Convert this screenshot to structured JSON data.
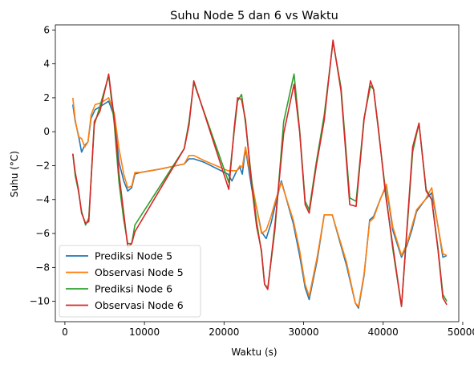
{
  "chart_data": {
    "type": "line",
    "title": "Suhu Node 5 dan 6 vs Waktu",
    "xlabel": "Waktu (s)",
    "ylabel": "Suhu (°C)",
    "xlim": [
      -1200,
      49500
    ],
    "ylim": [
      -11.2,
      6.3
    ],
    "x_ticks": [
      0,
      10000,
      20000,
      30000,
      40000,
      50000
    ],
    "x_tick_labels": [
      "0",
      "10000",
      "20000",
      "30000",
      "40000",
      "50000"
    ],
    "y_ticks": [
      -10,
      -8,
      -6,
      -4,
      -2,
      0,
      2,
      4,
      6
    ],
    "y_tick_labels": [
      "−10",
      "−8",
      "−6",
      "−4",
      "−2",
      "0",
      "2",
      "4",
      "6"
    ],
    "grid": false,
    "legend_position": "lower-left",
    "series": [
      {
        "name": "Prediksi Node 5",
        "color": "#1f77b4",
        "points": [
          [
            1000,
            1.6
          ],
          [
            1300,
            0.6
          ],
          [
            1700,
            -0.2
          ],
          [
            2100,
            -1.2
          ],
          [
            2500,
            -0.8
          ],
          [
            2900,
            -0.6
          ],
          [
            3300,
            0.8
          ],
          [
            3800,
            1.3
          ],
          [
            4500,
            1.5
          ],
          [
            5500,
            1.8
          ],
          [
            6200,
            0.9
          ],
          [
            6800,
            -1.8
          ],
          [
            7400,
            -2.9
          ],
          [
            7900,
            -3.5
          ],
          [
            8400,
            -3.3
          ],
          [
            8800,
            -2.5
          ],
          [
            9500,
            -2.4
          ],
          [
            12000,
            -2.2
          ],
          [
            15000,
            -1.9
          ],
          [
            15600,
            -1.6
          ],
          [
            16200,
            -1.6
          ],
          [
            17500,
            -1.8
          ],
          [
            20500,
            -2.5
          ],
          [
            21000,
            -2.9
          ],
          [
            21600,
            -2.3
          ],
          [
            22000,
            -2.1
          ],
          [
            22300,
            -2.5
          ],
          [
            22700,
            -1.0
          ],
          [
            23500,
            -3.4
          ],
          [
            24100,
            -4.5
          ],
          [
            24700,
            -5.9
          ],
          [
            25300,
            -6.3
          ],
          [
            25900,
            -5.4
          ],
          [
            26500,
            -4.2
          ],
          [
            27200,
            -2.9
          ],
          [
            28700,
            -5.4
          ],
          [
            29500,
            -7.3
          ],
          [
            30200,
            -9.2
          ],
          [
            30700,
            -9.9
          ],
          [
            31700,
            -7.6
          ],
          [
            32600,
            -4.9
          ],
          [
            33600,
            -4.9
          ],
          [
            35400,
            -7.9
          ],
          [
            36500,
            -10.1
          ],
          [
            36900,
            -10.4
          ],
          [
            37600,
            -8.5
          ],
          [
            38300,
            -5.2
          ],
          [
            38800,
            -5.0
          ],
          [
            39700,
            -3.9
          ],
          [
            40400,
            -3.2
          ],
          [
            41200,
            -5.8
          ],
          [
            42300,
            -7.4
          ],
          [
            43000,
            -6.7
          ],
          [
            43600,
            -5.8
          ],
          [
            44200,
            -4.7
          ],
          [
            45300,
            -4.0
          ],
          [
            46100,
            -3.6
          ],
          [
            46900,
            -5.6
          ],
          [
            47500,
            -7.4
          ],
          [
            48000,
            -7.3
          ]
        ]
      },
      {
        "name": "Observasi Node 5",
        "color": "#ff7f0e",
        "points": [
          [
            1000,
            2.0
          ],
          [
            1300,
            0.7
          ],
          [
            1700,
            -0.3
          ],
          [
            2100,
            -0.4
          ],
          [
            2500,
            -0.9
          ],
          [
            2900,
            -0.6
          ],
          [
            3300,
            1.0
          ],
          [
            3800,
            1.6
          ],
          [
            4500,
            1.7
          ],
          [
            5500,
            2.0
          ],
          [
            6200,
            1.1
          ],
          [
            6800,
            -1.0
          ],
          [
            7400,
            -2.5
          ],
          [
            7900,
            -3.3
          ],
          [
            8400,
            -3.2
          ],
          [
            8800,
            -2.4
          ],
          [
            9500,
            -2.4
          ],
          [
            12000,
            -2.2
          ],
          [
            15000,
            -1.9
          ],
          [
            15600,
            -1.4
          ],
          [
            16200,
            -1.4
          ],
          [
            17500,
            -1.7
          ],
          [
            20500,
            -2.3
          ],
          [
            21000,
            -2.3
          ],
          [
            21600,
            -2.3
          ],
          [
            22000,
            -2.0
          ],
          [
            22300,
            -2.1
          ],
          [
            22700,
            -0.9
          ],
          [
            23500,
            -3.0
          ],
          [
            24100,
            -4.5
          ],
          [
            24700,
            -6.0
          ],
          [
            25300,
            -5.8
          ],
          [
            25900,
            -5.0
          ],
          [
            26500,
            -4.0
          ],
          [
            27200,
            -3.0
          ],
          [
            28700,
            -5.2
          ],
          [
            29500,
            -7.0
          ],
          [
            30200,
            -9.0
          ],
          [
            30700,
            -9.7
          ],
          [
            31700,
            -7.4
          ],
          [
            32600,
            -4.9
          ],
          [
            33600,
            -4.9
          ],
          [
            35400,
            -7.7
          ],
          [
            36500,
            -10.1
          ],
          [
            36900,
            -10.3
          ],
          [
            37600,
            -8.4
          ],
          [
            38300,
            -5.3
          ],
          [
            38800,
            -5.1
          ],
          [
            39700,
            -3.9
          ],
          [
            40400,
            -3.1
          ],
          [
            41200,
            -5.6
          ],
          [
            42300,
            -7.3
          ],
          [
            43000,
            -6.6
          ],
          [
            43600,
            -5.6
          ],
          [
            44200,
            -4.6
          ],
          [
            45300,
            -4.0
          ],
          [
            46100,
            -3.3
          ],
          [
            46900,
            -5.6
          ],
          [
            47500,
            -7.2
          ],
          [
            48000,
            -7.3
          ]
        ]
      },
      {
        "name": "Prediksi Node 6",
        "color": "#2ca02c",
        "points": [
          [
            1000,
            -1.3
          ],
          [
            1300,
            -2.6
          ],
          [
            1700,
            -3.5
          ],
          [
            2100,
            -4.7
          ],
          [
            2600,
            -5.5
          ],
          [
            3000,
            -5.1
          ],
          [
            3700,
            0.4
          ],
          [
            4400,
            1.5
          ],
          [
            5500,
            3.3
          ],
          [
            6200,
            0.5
          ],
          [
            6800,
            -3.0
          ],
          [
            7400,
            -5.2
          ],
          [
            7900,
            -6.6
          ],
          [
            8400,
            -6.6
          ],
          [
            8800,
            -5.5
          ],
          [
            15000,
            -1.0
          ],
          [
            15600,
            0.6
          ],
          [
            16200,
            2.9
          ],
          [
            20600,
            -3.0
          ],
          [
            21300,
            0.1
          ],
          [
            21700,
            1.8
          ],
          [
            22200,
            2.2
          ],
          [
            22700,
            0.5
          ],
          [
            23500,
            -3.0
          ],
          [
            24100,
            -5.3
          ],
          [
            24700,
            -7.1
          ],
          [
            25100,
            -9.0
          ],
          [
            25500,
            -9.2
          ],
          [
            26400,
            -5.8
          ],
          [
            27500,
            0.6
          ],
          [
            28800,
            3.4
          ],
          [
            29500,
            0.1
          ],
          [
            30200,
            -4.1
          ],
          [
            30700,
            -4.6
          ],
          [
            31600,
            -1.8
          ],
          [
            32600,
            1.0
          ],
          [
            33700,
            5.3
          ],
          [
            34700,
            2.6
          ],
          [
            35800,
            -3.9
          ],
          [
            36600,
            -4.1
          ],
          [
            37600,
            0.8
          ],
          [
            38400,
            2.7
          ],
          [
            38800,
            2.5
          ],
          [
            39400,
            0.1
          ],
          [
            40300,
            -3.5
          ],
          [
            41200,
            -6.9
          ],
          [
            42300,
            -10.3
          ],
          [
            43700,
            -1.2
          ],
          [
            44500,
            0.5
          ],
          [
            45400,
            -3.4
          ],
          [
            46100,
            -4.0
          ],
          [
            46900,
            -6.9
          ],
          [
            47500,
            -9.6
          ],
          [
            48000,
            -10.0
          ]
        ]
      },
      {
        "name": "Observasi Node 6",
        "color": "#d62728",
        "points": [
          [
            1000,
            -1.3
          ],
          [
            1300,
            -2.4
          ],
          [
            1700,
            -3.4
          ],
          [
            2100,
            -4.8
          ],
          [
            2600,
            -5.4
          ],
          [
            3000,
            -5.3
          ],
          [
            3700,
            0.6
          ],
          [
            4400,
            1.2
          ],
          [
            5500,
            3.4
          ],
          [
            6200,
            0.8
          ],
          [
            6800,
            -2.5
          ],
          [
            7400,
            -4.8
          ],
          [
            7900,
            -6.8
          ],
          [
            8400,
            -6.6
          ],
          [
            8800,
            -5.9
          ],
          [
            15000,
            -1.0
          ],
          [
            15600,
            0.4
          ],
          [
            16200,
            3.0
          ],
          [
            20600,
            -3.4
          ],
          [
            21300,
            0.3
          ],
          [
            21700,
            2.0
          ],
          [
            22200,
            1.9
          ],
          [
            22700,
            0.7
          ],
          [
            23500,
            -3.3
          ],
          [
            24100,
            -5.6
          ],
          [
            24700,
            -7.0
          ],
          [
            25100,
            -9.0
          ],
          [
            25500,
            -9.3
          ],
          [
            26400,
            -5.5
          ],
          [
            27500,
            -0.1
          ],
          [
            28800,
            2.8
          ],
          [
            29500,
            0.0
          ],
          [
            30200,
            -4.3
          ],
          [
            30700,
            -4.8
          ],
          [
            31600,
            -2.0
          ],
          [
            32600,
            0.7
          ],
          [
            33700,
            5.4
          ],
          [
            34700,
            2.4
          ],
          [
            35800,
            -4.3
          ],
          [
            36600,
            -4.4
          ],
          [
            37600,
            0.7
          ],
          [
            38400,
            3.0
          ],
          [
            38800,
            2.5
          ],
          [
            39400,
            0.2
          ],
          [
            40300,
            -3.7
          ],
          [
            41200,
            -6.7
          ],
          [
            42300,
            -10.3
          ],
          [
            43700,
            -0.9
          ],
          [
            44500,
            0.5
          ],
          [
            45400,
            -3.5
          ],
          [
            46100,
            -4.0
          ],
          [
            46900,
            -7.0
          ],
          [
            47500,
            -9.8
          ],
          [
            48000,
            -10.2
          ]
        ]
      }
    ]
  }
}
